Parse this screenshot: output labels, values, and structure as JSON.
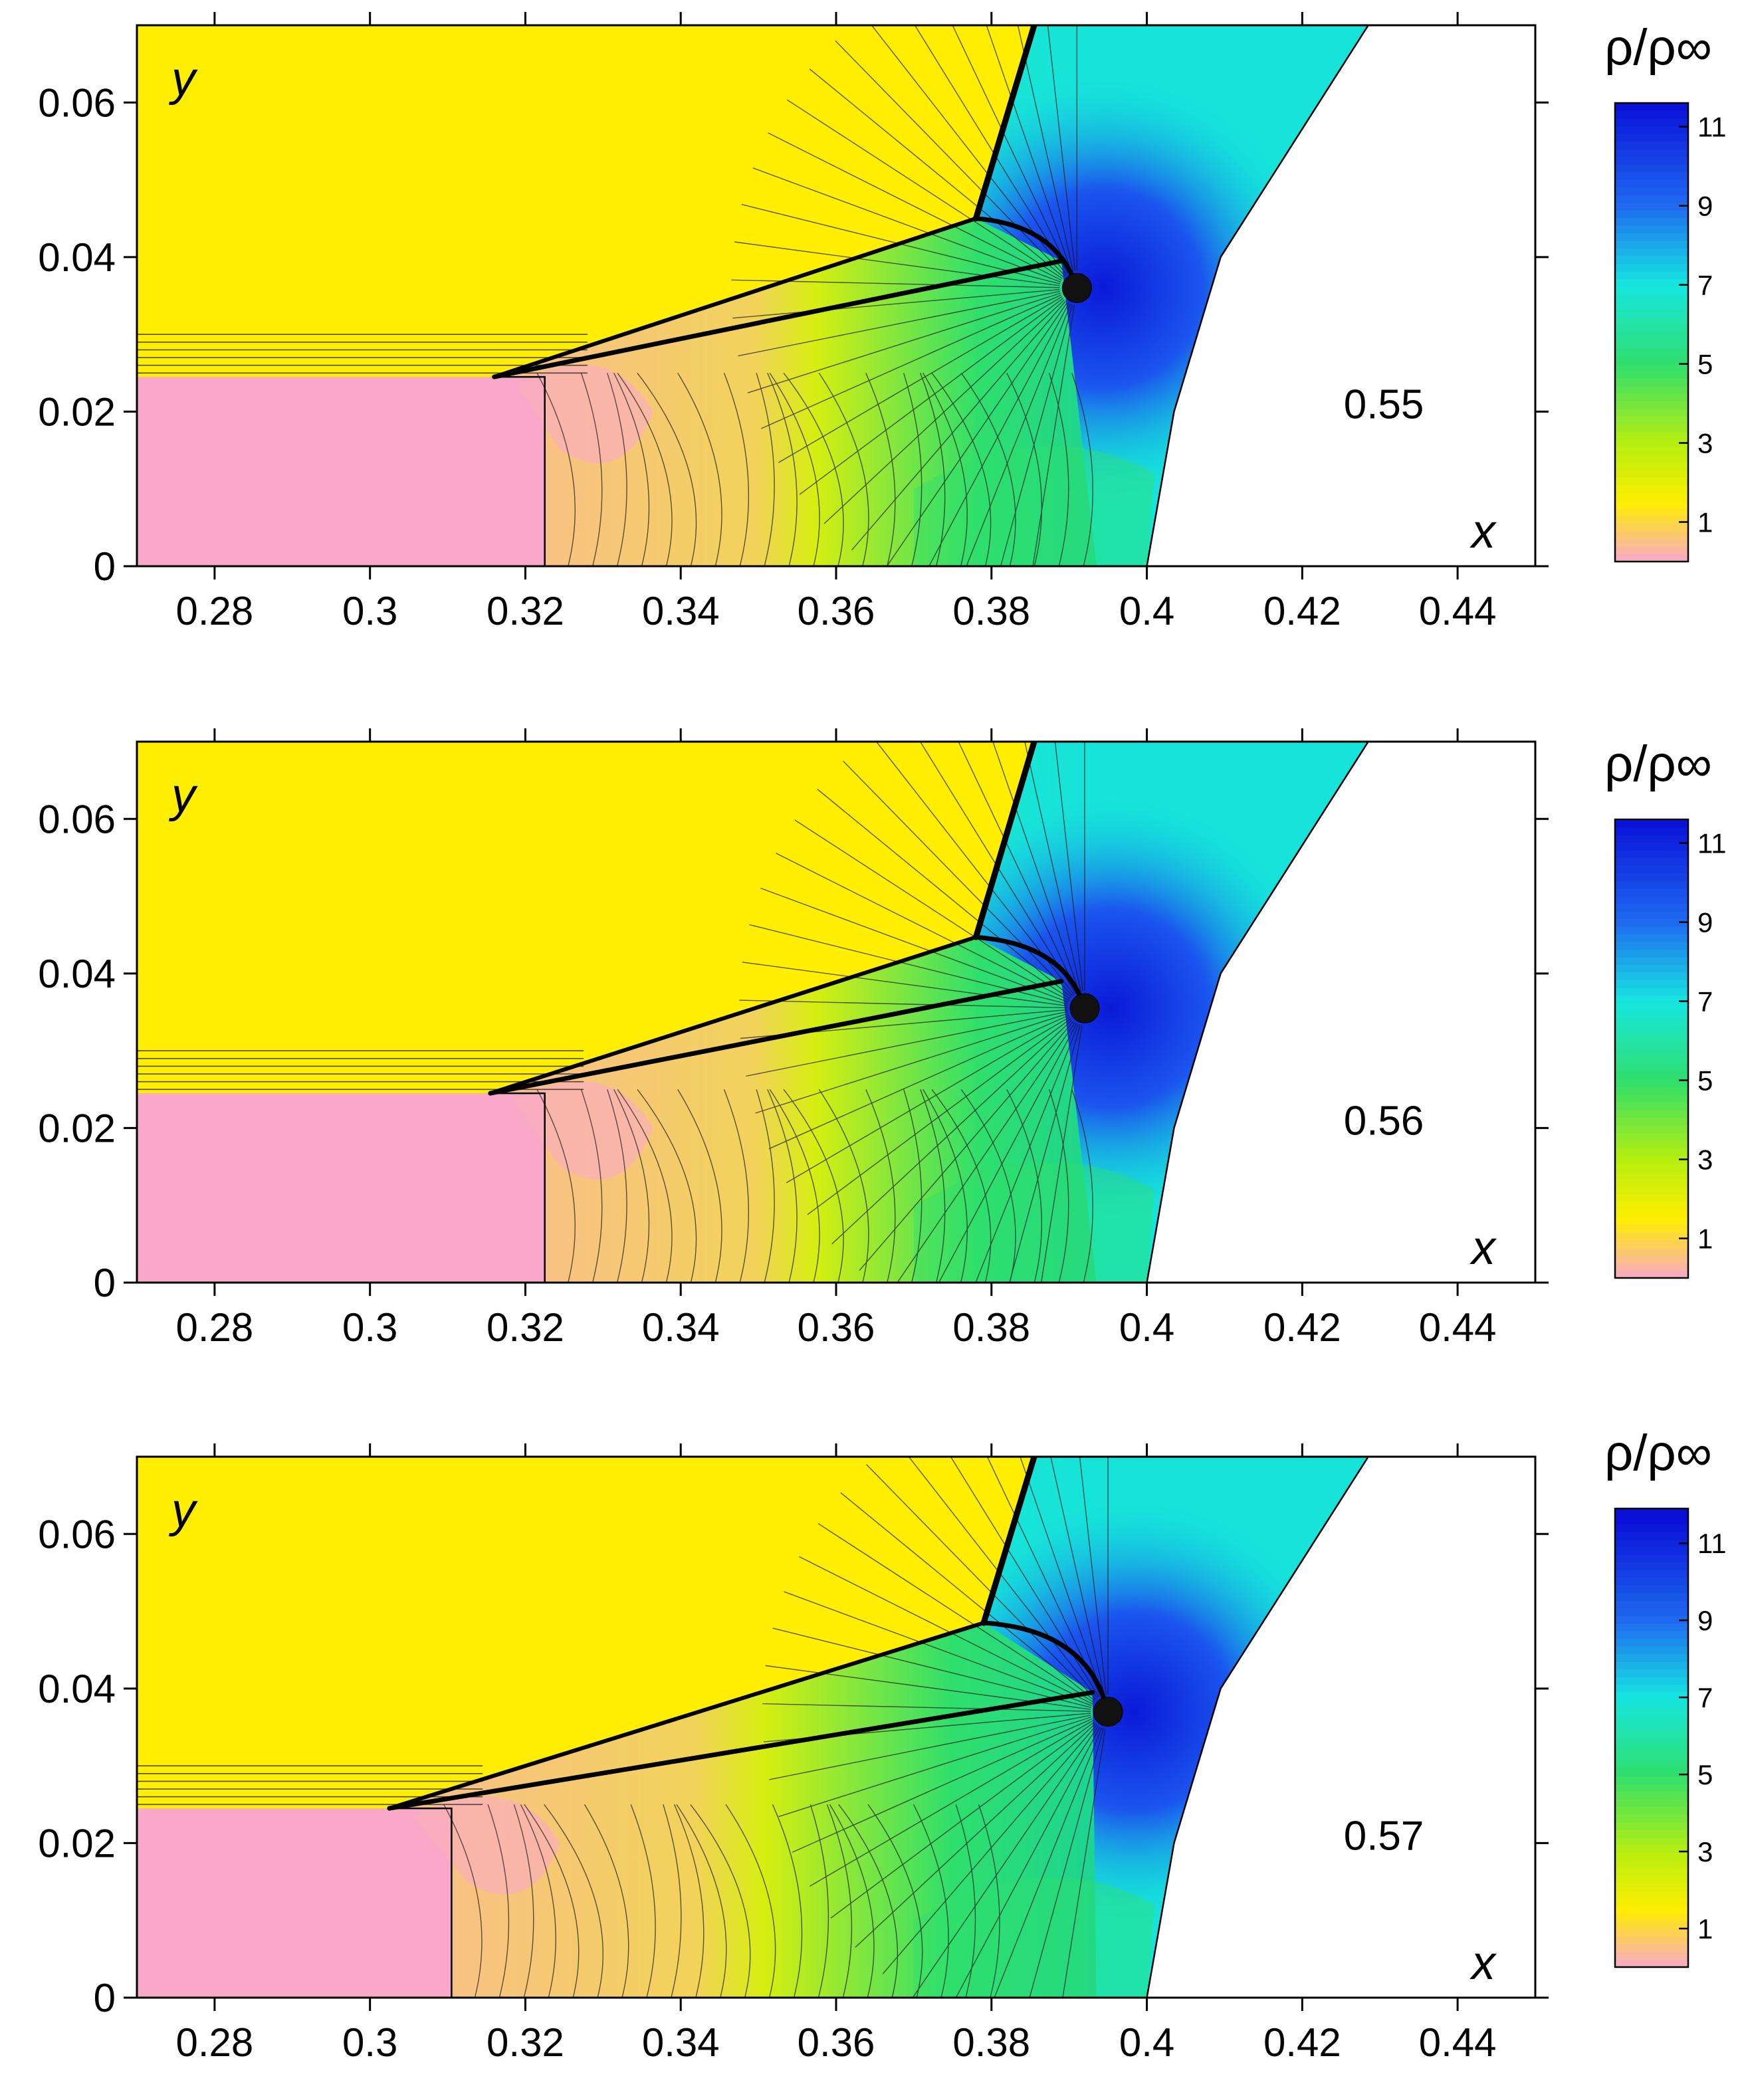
{
  "chart_data": [
    {
      "type": "heatmap",
      "plot": "density contour field",
      "time_label": "0.55",
      "xlabel": "x",
      "ylabel": "y",
      "xlim": [
        0.27,
        0.45
      ],
      "ylim": [
        0,
        0.07
      ],
      "xticks": [
        0.28,
        0.3,
        0.32,
        0.34,
        0.36,
        0.38,
        0.4,
        0.42,
        0.44
      ],
      "xtick_labels": [
        "0.28",
        "0.3",
        "0.32",
        "0.34",
        "0.36",
        "0.38",
        "0.4",
        "0.42",
        "0.44"
      ],
      "yticks": [
        0,
        0.02,
        0.04,
        0.06
      ],
      "ytick_labels": [
        "0",
        "0.02",
        "0.04",
        "0.06"
      ],
      "colorbar": {
        "title": "ρ/ρ∞",
        "range": [
          0,
          11.6
        ],
        "ticks": [
          1,
          3,
          5,
          7,
          9,
          11
        ],
        "tick_labels": [
          "1",
          "3",
          "5",
          "7",
          "9",
          "11"
        ]
      },
      "features": {
        "incident_shock": [
          [
            0.378,
            0.045
          ],
          [
            0.3855,
            0.07
          ]
        ],
        "triple_point": [
          0.378,
          0.045
        ],
        "mach_stem_upper": [
          [
            0.316,
            0.0245
          ],
          [
            0.378,
            0.045
          ]
        ],
        "mach_stem_lower": [
          [
            0.316,
            0.0245
          ],
          [
            0.389,
            0.0395
          ]
        ],
        "slip_layer_y": [
          0.025,
          0.03
        ],
        "contact_x": 0.3225,
        "vortex_core": [
          0.391,
          0.036
        ],
        "cylinder_contour": [
          [
            0.4,
            0
          ],
          [
            0.4035,
            0.02
          ],
          [
            0.4095,
            0.04
          ],
          [
            0.4285,
            0.07
          ]
        ]
      }
    },
    {
      "type": "heatmap",
      "plot": "density contour field",
      "time_label": "0.56",
      "xlabel": "x",
      "ylabel": "y",
      "xlim": [
        0.27,
        0.45
      ],
      "ylim": [
        0,
        0.07
      ],
      "xticks": [
        0.28,
        0.3,
        0.32,
        0.34,
        0.36,
        0.38,
        0.4,
        0.42,
        0.44
      ],
      "xtick_labels": [
        "0.28",
        "0.3",
        "0.32",
        "0.34",
        "0.36",
        "0.38",
        "0.4",
        "0.42",
        "0.44"
      ],
      "yticks": [
        0,
        0.02,
        0.04,
        0.06
      ],
      "ytick_labels": [
        "0",
        "0.02",
        "0.04",
        "0.06"
      ],
      "colorbar": {
        "title": "ρ/ρ∞",
        "range": [
          0,
          11.6
        ],
        "ticks": [
          1,
          3,
          5,
          7,
          9,
          11
        ],
        "tick_labels": [
          "1",
          "3",
          "5",
          "7",
          "9",
          "11"
        ]
      },
      "features": {
        "incident_shock": [
          [
            0.378,
            0.0447
          ],
          [
            0.3855,
            0.07
          ]
        ],
        "triple_point": [
          0.378,
          0.0447
        ],
        "mach_stem_upper": [
          [
            0.3155,
            0.0245
          ],
          [
            0.378,
            0.0447
          ]
        ],
        "mach_stem_lower": [
          [
            0.3155,
            0.0245
          ],
          [
            0.389,
            0.039
          ]
        ],
        "slip_layer_y": [
          0.025,
          0.03
        ],
        "contact_x": 0.3225,
        "vortex_core": [
          0.392,
          0.0355
        ],
        "cylinder_contour": [
          [
            0.4,
            0
          ],
          [
            0.4035,
            0.02
          ],
          [
            0.4095,
            0.04
          ],
          [
            0.4285,
            0.07
          ]
        ]
      }
    },
    {
      "type": "heatmap",
      "plot": "density contour field",
      "time_label": "0.57",
      "xlabel": "x",
      "ylabel": "y",
      "xlim": [
        0.27,
        0.45
      ],
      "ylim": [
        0,
        0.07
      ],
      "xticks": [
        0.28,
        0.3,
        0.32,
        0.34,
        0.36,
        0.38,
        0.4,
        0.42,
        0.44
      ],
      "xtick_labels": [
        "0.28",
        "0.3",
        "0.32",
        "0.34",
        "0.36",
        "0.38",
        "0.4",
        "0.42",
        "0.44"
      ],
      "yticks": [
        0,
        0.02,
        0.04,
        0.06
      ],
      "ytick_labels": [
        "0",
        "0.02",
        "0.04",
        "0.06"
      ],
      "colorbar": {
        "title": "ρ/ρ∞",
        "range": [
          0,
          11.9
        ],
        "ticks": [
          1,
          3,
          5,
          7,
          9,
          11
        ],
        "tick_labels": [
          "1",
          "3",
          "5",
          "7",
          "9",
          "11"
        ]
      },
      "features": {
        "incident_shock": [
          [
            0.379,
            0.0485
          ],
          [
            0.3855,
            0.07
          ]
        ],
        "triple_point": [
          0.379,
          0.0485
        ],
        "mach_stem_upper": [
          [
            0.3025,
            0.0245
          ],
          [
            0.379,
            0.0485
          ]
        ],
        "mach_stem_lower": [
          [
            0.3025,
            0.0245
          ],
          [
            0.393,
            0.0395
          ]
        ],
        "slip_layer_y": [
          0.025,
          0.03
        ],
        "contact_x": 0.3105,
        "vortex_core": [
          0.395,
          0.037
        ],
        "cylinder_contour": [
          [
            0.4,
            0
          ],
          [
            0.4035,
            0.02
          ],
          [
            0.4095,
            0.04
          ],
          [
            0.4285,
            0.07
          ]
        ]
      }
    }
  ],
  "colors": {
    "free_stream": "#ffee00",
    "post_shock_low": "#f9a8c9",
    "peach": "#f8c184",
    "yellow_green": "#d6ee10",
    "green": "#2fdf6c",
    "cyan": "#16e6e0",
    "blue_high": "#0a1ad8",
    "body": "#ffffff",
    "contour_line": "#1a1a1a"
  },
  "colormap_stops": [
    [
      0.0,
      "#f9a8c9"
    ],
    [
      1.5,
      "#ffee00"
    ],
    [
      3.0,
      "#b6ee10"
    ],
    [
      5.0,
      "#2fdf6c"
    ],
    [
      7.0,
      "#16e6e0"
    ],
    [
      9.0,
      "#1f6af0"
    ],
    [
      11.6,
      "#0a10d8"
    ]
  ]
}
